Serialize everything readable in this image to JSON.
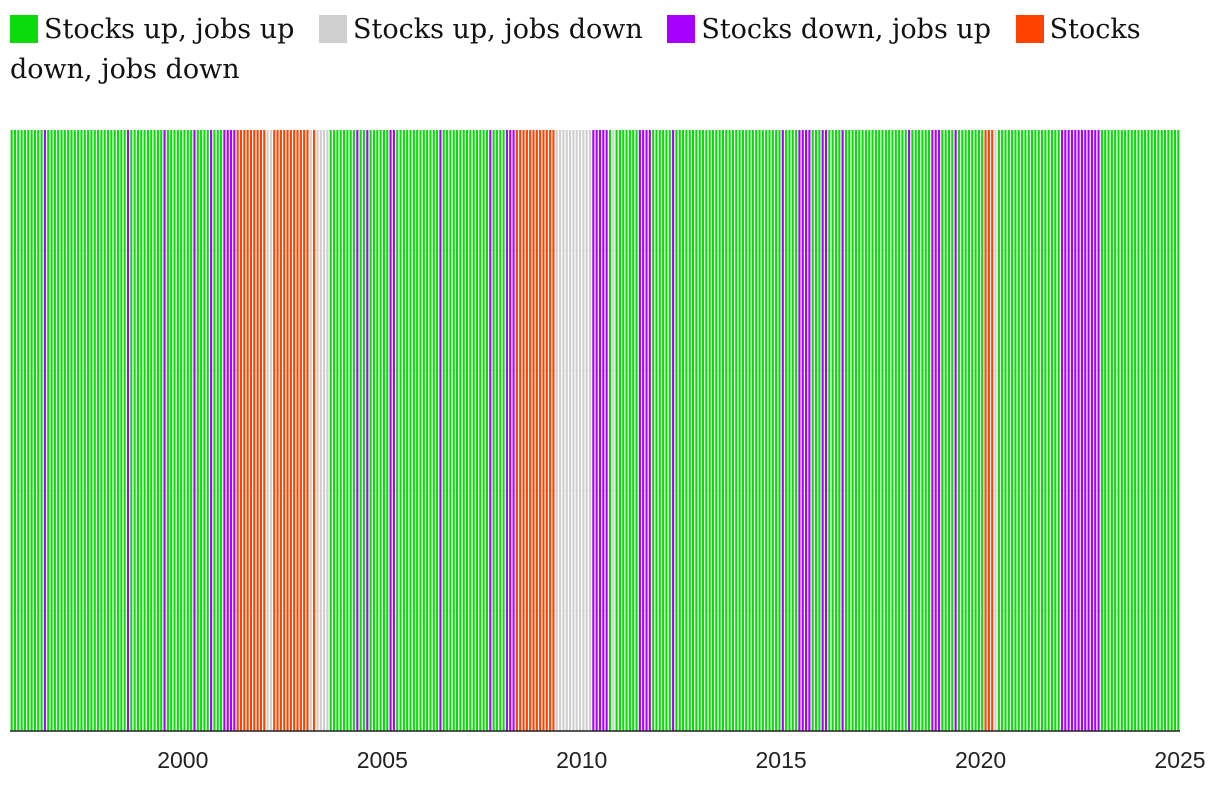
{
  "legend": [
    {
      "label": "Stocks up, jobs up",
      "color": "#0bdb0b"
    },
    {
      "label": "Stocks up, jobs down",
      "color": "#cfcfcf"
    },
    {
      "label": "Stocks down, jobs up",
      "color": "#a800ff"
    },
    {
      "label": "Stocks down, jobs down",
      "color": "#ff4200"
    }
  ],
  "chart_data": {
    "type": "bar",
    "x_unit": "month",
    "xlim": [
      "1995-09",
      "2024-12"
    ],
    "x_ticks": [
      "2000",
      "2005",
      "2010",
      "2015",
      "2020",
      "2025"
    ],
    "categories": [
      "Stocks up, jobs up",
      "Stocks up, jobs down",
      "Stocks down, jobs up",
      "Stocks down, jobs down"
    ],
    "colors": {
      "Stocks up, jobs up": "#0bdb0b",
      "Stocks up, jobs down": "#cfcfcf",
      "Stocks down, jobs up": "#a800ff",
      "Stocks down, jobs down": "#ff4200"
    },
    "periods": [
      {
        "start": "1995-09",
        "end": "1996-06",
        "category": "Stocks up, jobs up"
      },
      {
        "start": "1996-07",
        "end": "1996-07",
        "category": "Stocks down, jobs up"
      },
      {
        "start": "1996-08",
        "end": "1998-07",
        "category": "Stocks up, jobs up"
      },
      {
        "start": "1998-08",
        "end": "1998-08",
        "category": "Stocks down, jobs up"
      },
      {
        "start": "1998-09",
        "end": "1999-06",
        "category": "Stocks up, jobs up"
      },
      {
        "start": "1999-07",
        "end": "1999-07",
        "category": "Stocks down, jobs up"
      },
      {
        "start": "1999-08",
        "end": "2000-03",
        "category": "Stocks up, jobs up"
      },
      {
        "start": "2000-04",
        "end": "2000-04",
        "category": "Stocks down, jobs up"
      },
      {
        "start": "2000-05",
        "end": "2000-08",
        "category": "Stocks up, jobs up"
      },
      {
        "start": "2000-09",
        "end": "2000-09",
        "category": "Stocks down, jobs up"
      },
      {
        "start": "2000-10",
        "end": "2000-12",
        "category": "Stocks up, jobs up"
      },
      {
        "start": "2001-01",
        "end": "2001-04",
        "category": "Stocks down, jobs up"
      },
      {
        "start": "2001-05",
        "end": "2002-01",
        "category": "Stocks down, jobs down"
      },
      {
        "start": "2002-02",
        "end": "2002-03",
        "category": "Stocks up, jobs down"
      },
      {
        "start": "2002-04",
        "end": "2003-02",
        "category": "Stocks down, jobs down"
      },
      {
        "start": "2003-03",
        "end": "2003-03",
        "category": "Stocks up, jobs down"
      },
      {
        "start": "2003-04",
        "end": "2003-04",
        "category": "Stocks down, jobs down"
      },
      {
        "start": "2003-05",
        "end": "2003-08",
        "category": "Stocks up, jobs down"
      },
      {
        "start": "2003-09",
        "end": "2004-04",
        "category": "Stocks up, jobs up"
      },
      {
        "start": "2004-05",
        "end": "2004-05",
        "category": "Stocks down, jobs up"
      },
      {
        "start": "2004-06",
        "end": "2004-07",
        "category": "Stocks up, jobs up"
      },
      {
        "start": "2004-08",
        "end": "2004-08",
        "category": "Stocks down, jobs up"
      },
      {
        "start": "2004-09",
        "end": "2005-02",
        "category": "Stocks up, jobs up"
      },
      {
        "start": "2005-03",
        "end": "2005-04",
        "category": "Stocks down, jobs up"
      },
      {
        "start": "2005-05",
        "end": "2006-05",
        "category": "Stocks up, jobs up"
      },
      {
        "start": "2006-06",
        "end": "2006-06",
        "category": "Stocks down, jobs up"
      },
      {
        "start": "2006-07",
        "end": "2007-08",
        "category": "Stocks up, jobs up"
      },
      {
        "start": "2007-09",
        "end": "2007-09",
        "category": "Stocks down, jobs up"
      },
      {
        "start": "2007-10",
        "end": "2008-01",
        "category": "Stocks up, jobs up"
      },
      {
        "start": "2008-02",
        "end": "2008-04",
        "category": "Stocks down, jobs up"
      },
      {
        "start": "2008-05",
        "end": "2009-04",
        "category": "Stocks down, jobs down"
      },
      {
        "start": "2009-05",
        "end": "2010-03",
        "category": "Stocks up, jobs down"
      },
      {
        "start": "2010-04",
        "end": "2010-08",
        "category": "Stocks down, jobs up"
      },
      {
        "start": "2010-09",
        "end": "2010-09",
        "category": "Stocks up, jobs up"
      },
      {
        "start": "2010-10",
        "end": "2010-10",
        "category": "Stocks up, jobs down"
      },
      {
        "start": "2010-11",
        "end": "2011-05",
        "category": "Stocks up, jobs up"
      },
      {
        "start": "2011-06",
        "end": "2011-09",
        "category": "Stocks down, jobs up"
      },
      {
        "start": "2011-10",
        "end": "2012-03",
        "category": "Stocks up, jobs up"
      },
      {
        "start": "2012-04",
        "end": "2012-04",
        "category": "Stocks down, jobs up"
      },
      {
        "start": "2012-05",
        "end": "2014-12",
        "category": "Stocks up, jobs up"
      },
      {
        "start": "2015-01",
        "end": "2015-01",
        "category": "Stocks down, jobs up"
      },
      {
        "start": "2015-02",
        "end": "2015-05",
        "category": "Stocks up, jobs up"
      },
      {
        "start": "2015-06",
        "end": "2015-09",
        "category": "Stocks down, jobs up"
      },
      {
        "start": "2015-10",
        "end": "2015-12",
        "category": "Stocks up, jobs up"
      },
      {
        "start": "2016-01",
        "end": "2016-02",
        "category": "Stocks down, jobs up"
      },
      {
        "start": "2016-03",
        "end": "2016-06",
        "category": "Stocks up, jobs up"
      },
      {
        "start": "2016-07",
        "end": "2016-07",
        "category": "Stocks down, jobs up"
      },
      {
        "start": "2016-08",
        "end": "2018-02",
        "category": "Stocks up, jobs up"
      },
      {
        "start": "2018-03",
        "end": "2018-03",
        "category": "Stocks down, jobs up"
      },
      {
        "start": "2018-04",
        "end": "2018-09",
        "category": "Stocks up, jobs up"
      },
      {
        "start": "2018-10",
        "end": "2018-12",
        "category": "Stocks down, jobs up"
      },
      {
        "start": "2019-01",
        "end": "2019-04",
        "category": "Stocks up, jobs up"
      },
      {
        "start": "2019-05",
        "end": "2019-05",
        "category": "Stocks down, jobs up"
      },
      {
        "start": "2019-06",
        "end": "2020-01",
        "category": "Stocks up, jobs up"
      },
      {
        "start": "2020-02",
        "end": "2020-04",
        "category": "Stocks down, jobs down"
      },
      {
        "start": "2020-05",
        "end": "2020-05",
        "category": "Stocks up, jobs down"
      },
      {
        "start": "2020-06",
        "end": "2021-12",
        "category": "Stocks up, jobs up"
      },
      {
        "start": "2022-01",
        "end": "2022-12",
        "category": "Stocks down, jobs up"
      },
      {
        "start": "2023-01",
        "end": "2024-12",
        "category": "Stocks up, jobs up"
      }
    ]
  }
}
